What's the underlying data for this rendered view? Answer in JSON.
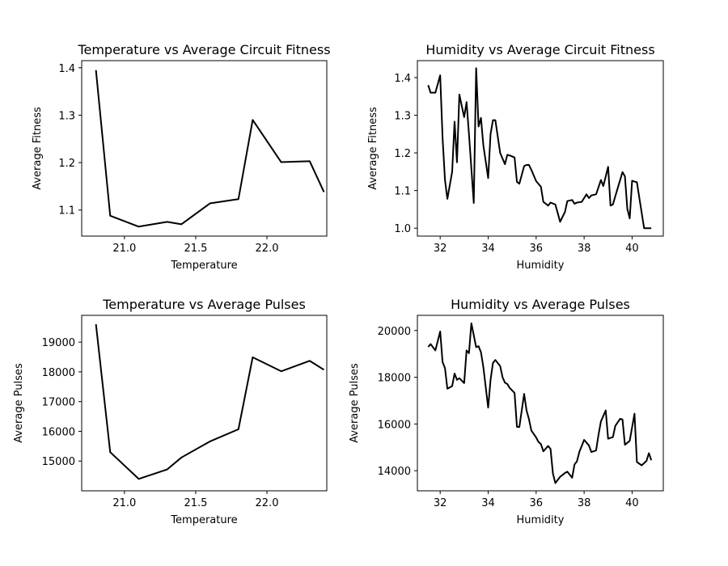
{
  "chart_data": [
    {
      "type": "line",
      "title": "Temperature vs Average Circuit Fitness",
      "xlabel": "Temperature",
      "ylabel": "Average Fitness",
      "xlim": [
        20.7,
        22.42
      ],
      "ylim": [
        1.045,
        1.415
      ],
      "xticks": [
        "21.0",
        "21.5",
        "22.0"
      ],
      "yticks": [
        "1.1",
        "1.2",
        "1.3",
        "1.4"
      ],
      "color": "#000000",
      "grid": false,
      "series": [
        {
          "x": [
            20.8,
            20.9,
            21.1,
            21.3,
            21.4,
            21.6,
            21.8,
            21.9,
            22.1,
            22.3,
            22.4
          ],
          "y": [
            1.395,
            1.088,
            1.065,
            1.075,
            1.07,
            1.114,
            1.123,
            1.29,
            1.201,
            1.203,
            1.138
          ]
        }
      ]
    },
    {
      "type": "line",
      "title": "Humidity vs Average Circuit Fitness",
      "xlabel": "Humidity",
      "ylabel": "Average Fitness",
      "xlim": [
        31.05,
        41.3
      ],
      "ylim": [
        0.979,
        1.445
      ],
      "xticks": [
        "32",
        "34",
        "36",
        "38",
        "40"
      ],
      "yticks": [
        "1.0",
        "1.1",
        "1.2",
        "1.3",
        "1.4"
      ],
      "color": "#000000",
      "grid": false,
      "series": [
        {
          "x": [
            31.5,
            31.6,
            31.8,
            32.0,
            32.1,
            32.2,
            32.3,
            32.5,
            32.6,
            32.7,
            32.8,
            33.0,
            33.1,
            33.2,
            33.4,
            33.5,
            33.6,
            33.7,
            33.8,
            34.0,
            34.1,
            34.2,
            34.3,
            34.5,
            34.7,
            34.8,
            34.9,
            35.1,
            35.2,
            35.3,
            35.5,
            35.6,
            35.7,
            35.8,
            36.0,
            36.2,
            36.3,
            36.5,
            36.6,
            36.8,
            37.0,
            37.1,
            37.2,
            37.3,
            37.5,
            37.6,
            37.7,
            37.9,
            38.1,
            38.2,
            38.3,
            38.5,
            38.7,
            38.8,
            39.0,
            39.1,
            39.2,
            39.3,
            39.6,
            39.7,
            39.8,
            39.9,
            40.0,
            40.2,
            40.5,
            40.8
          ],
          "y": [
            1.38,
            1.36,
            1.36,
            1.406,
            1.24,
            1.128,
            1.078,
            1.15,
            1.283,
            1.175,
            1.355,
            1.295,
            1.335,
            1.25,
            1.067,
            1.425,
            1.27,
            1.293,
            1.22,
            1.133,
            1.25,
            1.287,
            1.287,
            1.2,
            1.17,
            1.195,
            1.193,
            1.188,
            1.123,
            1.118,
            1.165,
            1.168,
            1.168,
            1.155,
            1.125,
            1.11,
            1.07,
            1.06,
            1.068,
            1.063,
            1.017,
            1.03,
            1.043,
            1.072,
            1.075,
            1.065,
            1.068,
            1.07,
            1.09,
            1.08,
            1.087,
            1.09,
            1.128,
            1.112,
            1.163,
            1.06,
            1.063,
            1.085,
            1.149,
            1.138,
            1.052,
            1.026,
            1.126,
            1.122,
            1.0,
            1.0
          ]
        }
      ]
    },
    {
      "type": "line",
      "title": "Temperature vs Average Pulses",
      "xlabel": "Temperature",
      "ylabel": "Average Pulses",
      "xlim": [
        20.7,
        22.42
      ],
      "ylim": [
        14000,
        19900
      ],
      "xticks": [
        "21.0",
        "21.5",
        "22.0"
      ],
      "yticks": [
        "15000",
        "16000",
        "17000",
        "18000",
        "19000"
      ],
      "color": "#000000",
      "grid": false,
      "series": [
        {
          "x": [
            20.8,
            20.9,
            21.1,
            21.3,
            21.4,
            21.6,
            21.8,
            21.9,
            22.1,
            22.3,
            22.4
          ],
          "y": [
            19600,
            15300,
            14400,
            14720,
            15120,
            15660,
            16070,
            18490,
            18020,
            18370,
            18070
          ]
        }
      ]
    },
    {
      "type": "line",
      "title": "Humidity vs Average Pulses",
      "xlabel": "Humidity",
      "ylabel": "Average Pulses",
      "xlim": [
        31.05,
        41.3
      ],
      "ylim": [
        13140,
        20650
      ],
      "xticks": [
        "32",
        "34",
        "36",
        "38",
        "40"
      ],
      "yticks": [
        "14000",
        "16000",
        "18000",
        "20000"
      ],
      "color": "#000000",
      "grid": false,
      "series": [
        {
          "x": [
            31.5,
            31.6,
            31.8,
            32.0,
            32.1,
            32.2,
            32.3,
            32.5,
            32.6,
            32.7,
            32.8,
            33.0,
            33.1,
            33.2,
            33.3,
            33.5,
            33.6,
            33.7,
            33.8,
            34.0,
            34.1,
            34.2,
            34.3,
            34.5,
            34.6,
            34.7,
            34.8,
            34.9,
            35.1,
            35.2,
            35.3,
            35.5,
            35.6,
            35.7,
            35.8,
            36.0,
            36.1,
            36.2,
            36.3,
            36.5,
            36.6,
            36.7,
            36.8,
            37.0,
            37.2,
            37.3,
            37.5,
            37.6,
            37.7,
            37.8,
            38.0,
            38.2,
            38.3,
            38.5,
            38.6,
            38.7,
            38.9,
            39.0,
            39.2,
            39.3,
            39.5,
            39.6,
            39.7,
            39.9,
            40.1,
            40.2,
            40.4,
            40.6,
            40.7,
            40.8
          ],
          "y": [
            19300,
            19420,
            19150,
            19960,
            18650,
            18390,
            17510,
            17620,
            18160,
            17890,
            17960,
            17750,
            19150,
            19030,
            20310,
            19290,
            19330,
            19070,
            18430,
            16700,
            17890,
            18610,
            18740,
            18480,
            18000,
            17770,
            17710,
            17540,
            17330,
            15880,
            15870,
            17290,
            16580,
            16210,
            15720,
            15420,
            15230,
            15140,
            14830,
            15060,
            14930,
            13880,
            13470,
            13740,
            13900,
            13960,
            13700,
            14270,
            14400,
            14800,
            15320,
            15080,
            14800,
            14870,
            15540,
            16110,
            16580,
            15370,
            15440,
            15920,
            16220,
            16190,
            15110,
            15280,
            16440,
            14370,
            14230,
            14420,
            14750,
            14450
          ]
        }
      ]
    }
  ]
}
